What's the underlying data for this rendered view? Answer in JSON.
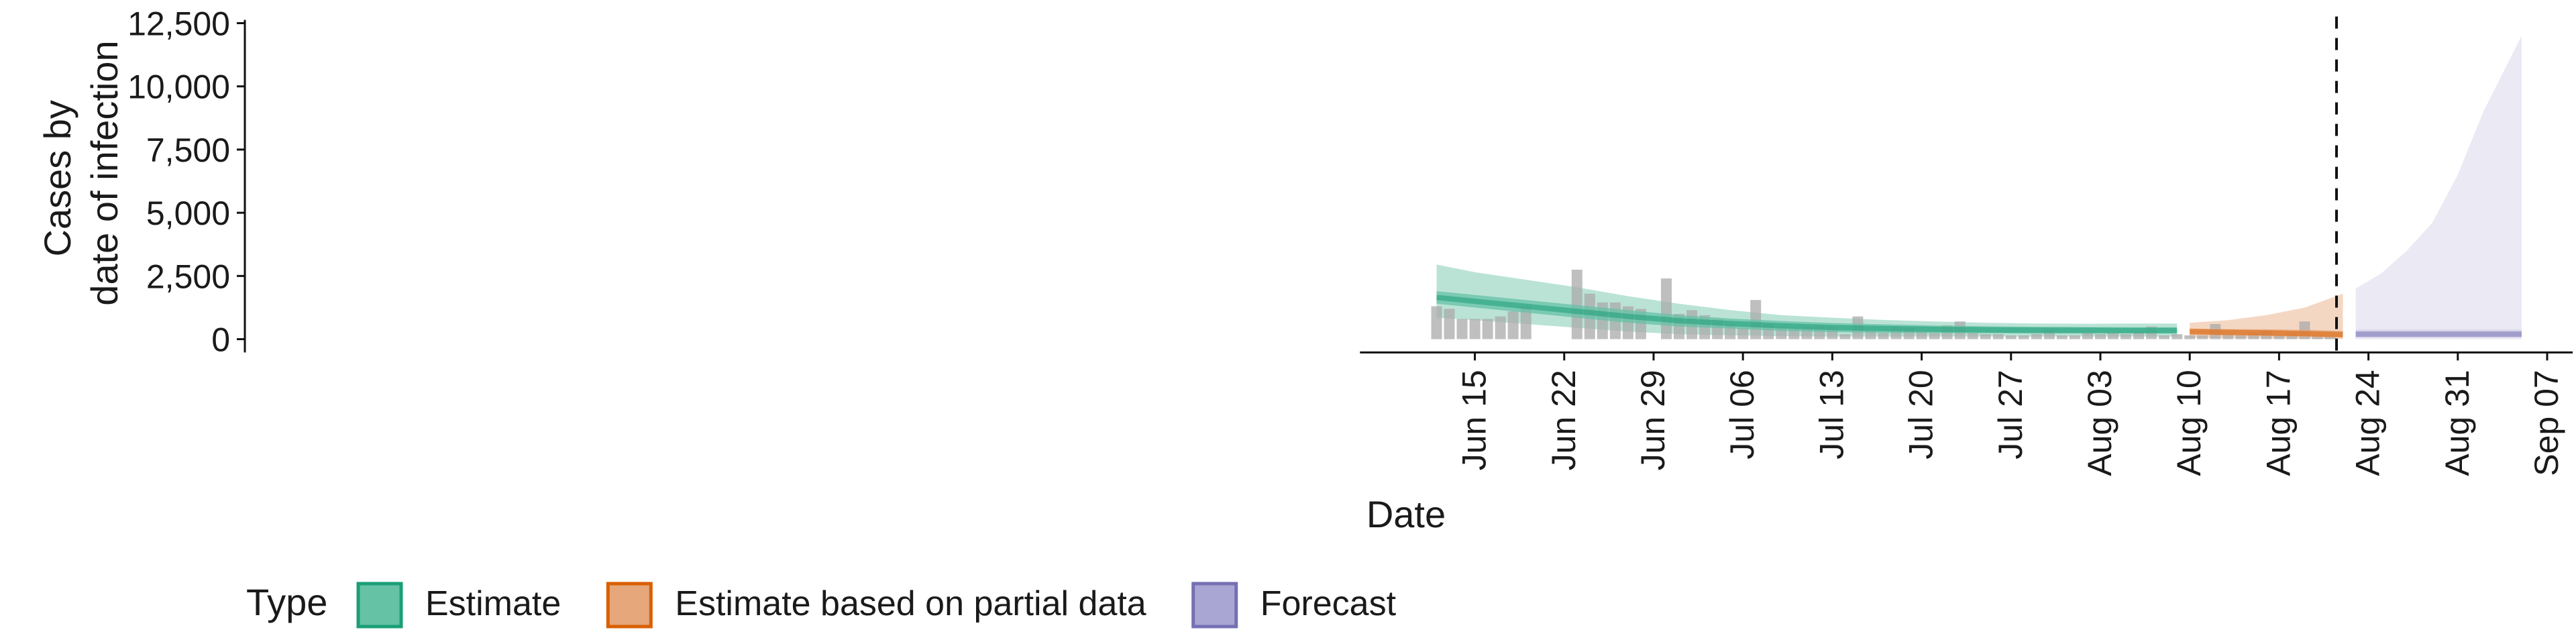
{
  "chart_data": {
    "type": "area",
    "xlabel": "Date",
    "ylabel_lines": [
      "Cases by",
      "date of infection"
    ],
    "y_ticks": [
      0,
      2500,
      5000,
      7500,
      10000,
      12500
    ],
    "y_tick_labels": [
      "0",
      "2,500",
      "5,000",
      "7,500",
      "10,000",
      "12,500"
    ],
    "ylim": [
      -1200,
      13000
    ],
    "x_range": [
      "2020-06-06",
      "2020-09-09"
    ],
    "x_ticks": [
      "2020-06-15",
      "2020-06-22",
      "2020-06-29",
      "2020-07-06",
      "2020-07-13",
      "2020-07-20",
      "2020-07-27",
      "2020-08-03",
      "2020-08-10",
      "2020-08-17",
      "2020-08-24",
      "2020-08-31",
      "2020-09-07"
    ],
    "x_tick_labels": [
      "Jun 15",
      "Jun 22",
      "Jun 29",
      "Jul 06",
      "Jul 13",
      "Jul 20",
      "Jul 27",
      "Aug 03",
      "Aug 10",
      "Aug 17",
      "Aug 24",
      "Aug 31",
      "Sep 07"
    ],
    "forecast_date": "2020-08-22",
    "reported_cases": {
      "dates": [
        "2020-06-12",
        "2020-06-13",
        "2020-06-14",
        "2020-06-15",
        "2020-06-16",
        "2020-06-17",
        "2020-06-18",
        "2020-06-19",
        "2020-06-20",
        "2020-06-21",
        "2020-06-22",
        "2020-06-23",
        "2020-06-24",
        "2020-06-25",
        "2020-06-26",
        "2020-06-27",
        "2020-06-28",
        "2020-06-29",
        "2020-06-30",
        "2020-07-01",
        "2020-07-02",
        "2020-07-03",
        "2020-07-04",
        "2020-07-05",
        "2020-07-06",
        "2020-07-07",
        "2020-07-08",
        "2020-07-09",
        "2020-07-10",
        "2020-07-11",
        "2020-07-12",
        "2020-07-13",
        "2020-07-14",
        "2020-07-15",
        "2020-07-16",
        "2020-07-17",
        "2020-07-18",
        "2020-07-19",
        "2020-07-20",
        "2020-07-21",
        "2020-07-22",
        "2020-07-23",
        "2020-07-24",
        "2020-07-25",
        "2020-07-26",
        "2020-07-27",
        "2020-07-28",
        "2020-07-29",
        "2020-07-30",
        "2020-07-31",
        "2020-08-01",
        "2020-08-02",
        "2020-08-03",
        "2020-08-04",
        "2020-08-05",
        "2020-08-06",
        "2020-08-07",
        "2020-08-08",
        "2020-08-09",
        "2020-08-10",
        "2020-08-11",
        "2020-08-12",
        "2020-08-13",
        "2020-08-14",
        "2020-08-15",
        "2020-08-16",
        "2020-08-17",
        "2020-08-18",
        "2020-08-19",
        "2020-08-20",
        "2020-08-21"
      ],
      "values": [
        1300,
        1200,
        800,
        800,
        800,
        900,
        1100,
        1300,
        0,
        0,
        0,
        2750,
        1800,
        1450,
        1450,
        1300,
        1200,
        0,
        2400,
        1000,
        1150,
        950,
        800,
        600,
        450,
        1550,
        600,
        500,
        450,
        500,
        550,
        500,
        200,
        900,
        350,
        250,
        500,
        450,
        300,
        250,
        550,
        700,
        250,
        200,
        200,
        150,
        150,
        200,
        400,
        150,
        150,
        250,
        200,
        250,
        200,
        300,
        500,
        150,
        200,
        150,
        150,
        600,
        200,
        150,
        250,
        350,
        150,
        250,
        700,
        150,
        100
      ],
      "color": "#aaaaaa"
    },
    "series": [
      {
        "name": "Estimate",
        "color": "#1b9e77",
        "fill": "#66c2a5",
        "dates": [
          "2020-06-12",
          "2020-06-15",
          "2020-06-19",
          "2020-06-23",
          "2020-06-27",
          "2020-07-01",
          "2020-07-05",
          "2020-07-09",
          "2020-07-13",
          "2020-07-17",
          "2020-07-21",
          "2020-07-25",
          "2020-07-29",
          "2020-08-02",
          "2020-08-06",
          "2020-08-09"
        ],
        "lower90": [
          850,
          750,
          600,
          450,
          300,
          200,
          150,
          120,
          100,
          100,
          100,
          100,
          100,
          100,
          100,
          100
        ],
        "upper90": [
          2950,
          2650,
          2350,
          2050,
          1700,
          1400,
          1150,
          950,
          850,
          760,
          700,
          650,
          620,
          610,
          620,
          620
        ],
        "lower50": [
          1400,
          1250,
          1050,
          850,
          650,
          500,
          420,
          330,
          280,
          250,
          240,
          230,
          220,
          220,
          220,
          220
        ],
        "upper50": [
          1900,
          1750,
          1550,
          1350,
          1150,
          950,
          820,
          720,
          640,
          590,
          540,
          510,
          490,
          480,
          470,
          470
        ],
        "median": [
          1650,
          1500,
          1300,
          1100,
          900,
          730,
          620,
          530,
          460,
          420,
          390,
          370,
          355,
          350,
          345,
          345
        ]
      },
      {
        "name": "Estimate based on partial data",
        "color": "#d95f02",
        "fill": "#e6a77a",
        "dates": [
          "2020-08-10",
          "2020-08-13",
          "2020-08-16",
          "2020-08-19",
          "2020-08-22"
        ],
        "lower90": [
          50,
          40,
          30,
          20,
          0
        ],
        "upper90": [
          650,
          750,
          950,
          1250,
          1800
        ],
        "lower50": [
          170,
          150,
          130,
          100,
          60
        ],
        "upper50": [
          420,
          400,
          390,
          370,
          330
        ],
        "median": [
          300,
          270,
          250,
          220,
          180
        ]
      },
      {
        "name": "Forecast",
        "color": "#7570b3",
        "fill": "#d1cfe6",
        "dates": [
          "2020-08-23",
          "2020-08-25",
          "2020-08-27",
          "2020-08-29",
          "2020-08-31",
          "2020-09-02",
          "2020-09-04",
          "2020-09-05"
        ],
        "lower90": [
          0,
          0,
          0,
          0,
          0,
          0,
          0,
          0
        ],
        "upper90": [
          2000,
          2600,
          3500,
          4600,
          6500,
          9000,
          11000,
          12000
        ],
        "lower50": [
          60,
          60,
          60,
          60,
          60,
          60,
          60,
          60
        ],
        "upper50": [
          380,
          380,
          380,
          380,
          380,
          380,
          380,
          380
        ],
        "median": [
          200,
          200,
          200,
          200,
          200,
          200,
          200,
          200
        ]
      }
    ],
    "legend": {
      "title": "Type",
      "position": "bottom",
      "items": [
        {
          "label": "Estimate",
          "fill": "#66c2a5",
          "stroke": "#1b9e77"
        },
        {
          "label": "Estimate based on partial data",
          "fill": "#e6a77a",
          "stroke": "#d95f02"
        },
        {
          "label": "Forecast",
          "fill": "#aaa6d4",
          "stroke": "#7570b3"
        }
      ]
    },
    "grid": false
  }
}
